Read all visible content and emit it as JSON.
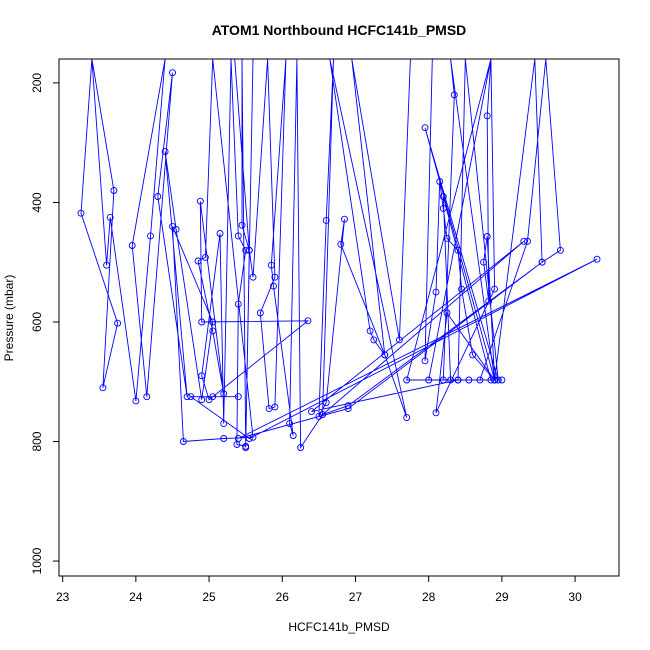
{
  "chart_data": {
    "type": "scatter",
    "title": "ATOM1 Northbound HCFC141b_PMSD",
    "xlabel": "HCFC141b_PMSD",
    "ylabel": "Pressure (mbar)",
    "xlim": [
      22.95,
      30.6
    ],
    "ylim": [
      1025,
      160
    ],
    "y_reversed": true,
    "grid": false,
    "x_ticks": [
      23,
      24,
      25,
      26,
      27,
      28,
      29,
      30
    ],
    "y_ticks": [
      200,
      400,
      600,
      800,
      1000
    ],
    "series": [
      {
        "color": "#0000ff",
        "marker": "open-circle",
        "line": true,
        "points": [
          [
            23.4,
            160
          ],
          [
            23.25,
            418
          ],
          [
            23.75,
            602
          ],
          [
            23.55,
            710
          ],
          [
            23.7,
            380
          ],
          [
            23.4,
            160
          ],
          [
            23.6,
            505
          ],
          [
            23.65,
            425
          ],
          [
            24.0,
            732
          ],
          [
            24.2,
            456
          ],
          [
            24.4,
            160
          ],
          [
            23.95,
            472
          ],
          [
            24.15,
            725
          ],
          [
            24.5,
            183
          ],
          [
            24.3,
            390
          ],
          [
            24.7,
            725
          ],
          [
            24.4,
            315
          ],
          [
            24.55,
            445
          ],
          [
            24.9,
            730
          ],
          [
            25.05,
            600
          ],
          [
            24.5,
            440
          ],
          [
            24.65,
            800
          ],
          [
            25.2,
            795
          ],
          [
            25.6,
            793
          ],
          [
            25.05,
            160
          ],
          [
            24.95,
            492
          ],
          [
            24.85,
            498
          ],
          [
            25.05,
            615
          ],
          [
            25.2,
            720
          ],
          [
            24.88,
            398
          ],
          [
            24.9,
            600
          ],
          [
            26.35,
            598
          ],
          [
            25.0,
            730
          ],
          [
            24.9,
            690
          ],
          [
            25.15,
            452
          ],
          [
            25.2,
            770
          ],
          [
            25.3,
            160
          ],
          [
            25.4,
            456
          ],
          [
            25.5,
            480
          ],
          [
            25.4,
            570
          ],
          [
            25.38,
            805
          ],
          [
            25.5,
            808
          ],
          [
            25.45,
            160
          ],
          [
            25.45,
            438
          ],
          [
            25.55,
            480
          ],
          [
            25.5,
            810
          ],
          [
            25.6,
            160
          ],
          [
            25.35,
            160
          ],
          [
            25.55,
            480
          ],
          [
            25.6,
            525
          ],
          [
            25.8,
            160
          ],
          [
            25.9,
            525
          ],
          [
            25.7,
            585
          ],
          [
            25.82,
            745
          ],
          [
            25.9,
            742
          ],
          [
            26.05,
            160
          ],
          [
            25.85,
            505
          ],
          [
            25.88,
            540
          ],
          [
            26.15,
            790
          ],
          [
            26.1,
            770
          ],
          [
            26.2,
            160
          ],
          [
            26.25,
            810
          ],
          [
            26.55,
            755
          ],
          [
            26.7,
            160
          ],
          [
            26.6,
            430
          ],
          [
            26.5,
            758
          ],
          [
            26.6,
            735
          ],
          [
            26.85,
            428
          ],
          [
            26.8,
            470
          ],
          [
            27.4,
            655
          ],
          [
            27.7,
            760
          ],
          [
            26.65,
            160
          ],
          [
            27.2,
            615
          ],
          [
            27.25,
            630
          ],
          [
            27.4,
            655
          ],
          [
            26.95,
            160
          ],
          [
            27.6,
            630
          ],
          [
            27.75,
            160
          ],
          [
            28.05,
            160
          ],
          [
            27.95,
            665
          ],
          [
            28.1,
            550
          ],
          [
            28.15,
            365
          ],
          [
            28.2,
            410
          ],
          [
            28.25,
            460
          ],
          [
            28.4,
            480
          ],
          [
            28.45,
            545
          ],
          [
            28.6,
            655
          ],
          [
            28.9,
            697
          ],
          [
            28.3,
            160
          ],
          [
            28.35,
            220
          ],
          [
            28.2,
            697
          ],
          [
            28.55,
            697
          ],
          [
            28.9,
            697
          ],
          [
            27.95,
            275
          ],
          [
            28.95,
            697
          ],
          [
            28.5,
            160
          ],
          [
            28.4,
            697
          ],
          [
            27.7,
            697
          ],
          [
            28.85,
            160
          ],
          [
            28.8,
            255
          ],
          [
            28.82,
            565
          ],
          [
            28.75,
            500
          ],
          [
            28.8,
            457
          ],
          [
            28.9,
            697
          ],
          [
            28.0,
            697
          ],
          [
            28.85,
            160
          ],
          [
            28.9,
            545
          ],
          [
            28.1,
            752
          ],
          [
            28.25,
            585
          ],
          [
            28.9,
            697
          ],
          [
            29.45,
            160
          ],
          [
            29.55,
            500
          ],
          [
            29.8,
            480
          ],
          [
            29.6,
            160
          ],
          [
            29.35,
            465
          ],
          [
            28.7,
            697
          ],
          [
            29.0,
            697
          ],
          [
            28.3,
            697
          ],
          [
            28.2,
            390
          ],
          [
            28.85,
            697
          ],
          [
            28.4,
            697
          ],
          [
            26.4,
            750
          ],
          [
            29.3,
            465
          ],
          [
            26.55,
            755
          ],
          [
            26.9,
            740
          ],
          [
            29.55,
            500
          ],
          [
            26.9,
            745
          ],
          [
            25.4,
            795
          ],
          [
            30.3,
            495
          ],
          [
            25.55,
            795
          ],
          [
            24.75,
            725
          ],
          [
            25.05,
            725
          ],
          [
            25.4,
            725
          ]
        ]
      }
    ]
  }
}
